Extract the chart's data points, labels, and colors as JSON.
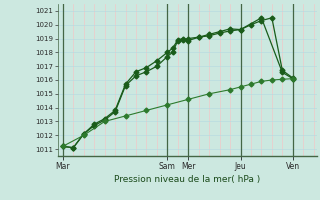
{
  "bg_color": "#cce8e0",
  "line_color": "#1a5c1a",
  "line_color_thin": "#2d7a2d",
  "grid_color_v": "#f0c8c8",
  "grid_color_h": "#b8dce0",
  "vline_color": "#446644",
  "xlabel": "Pression niveau de la mer( hPa )",
  "ylim_min": 1010.5,
  "ylim_max": 1021.5,
  "yticks": [
    1011,
    1012,
    1013,
    1014,
    1015,
    1016,
    1017,
    1018,
    1019,
    1020,
    1021
  ],
  "xtick_labels": [
    "Mar",
    "Sam​Mer",
    "Jeu",
    "Ven"
  ],
  "xtick_pos": [
    0,
    10,
    17,
    22
  ],
  "total_points": 24,
  "vlines_x": [
    0,
    10,
    12,
    17,
    22
  ],
  "line1_x": [
    0,
    1,
    2,
    3,
    4,
    5,
    6,
    7,
    8,
    9,
    10,
    10.5,
    11,
    11.5,
    12,
    13,
    14,
    15,
    16,
    17,
    19,
    21,
    22
  ],
  "line1_y": [
    1011.2,
    1011.1,
    1012.1,
    1012.7,
    1013.1,
    1013.7,
    1015.6,
    1016.3,
    1016.6,
    1017.0,
    1017.7,
    1018.0,
    1018.85,
    1018.9,
    1019.0,
    1019.1,
    1019.2,
    1019.4,
    1019.55,
    1019.65,
    1020.5,
    1016.55,
    1016.1
  ],
  "line2_x": [
    0,
    1,
    2,
    3,
    4,
    5,
    6,
    7,
    8,
    9,
    10,
    10.5,
    11,
    11.5,
    12,
    13,
    14,
    15,
    16,
    17,
    18,
    19,
    20,
    21,
    22
  ],
  "line2_y": [
    1011.2,
    1011.1,
    1012.1,
    1012.8,
    1013.2,
    1013.8,
    1015.7,
    1016.6,
    1016.9,
    1017.4,
    1018.0,
    1018.3,
    1018.9,
    1019.0,
    1018.85,
    1019.1,
    1019.3,
    1019.5,
    1019.7,
    1019.65,
    1020.0,
    1020.3,
    1020.5,
    1016.7,
    1016.15
  ],
  "line3_x": [
    0,
    2,
    4,
    6,
    8,
    10,
    12,
    14,
    16,
    17,
    18,
    19,
    20,
    21,
    22
  ],
  "line3_y": [
    1011.2,
    1012.0,
    1013.0,
    1013.4,
    1013.8,
    1014.2,
    1014.6,
    1015.0,
    1015.3,
    1015.5,
    1015.7,
    1015.9,
    1016.0,
    1016.05,
    1016.1
  ]
}
